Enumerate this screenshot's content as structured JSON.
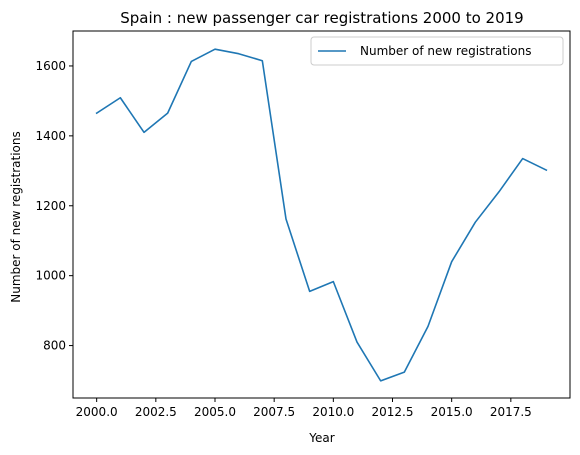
{
  "chart_data": {
    "type": "line",
    "title": "Spain : new passenger car registrations 2000 to 2019",
    "xlabel": "Year",
    "ylabel": "Number of new registrations",
    "xlim": [
      1999.0,
      2020.0
    ],
    "ylim": [
      650,
      1700
    ],
    "x_ticks": [
      2000.0,
      2002.5,
      2005.0,
      2007.5,
      2010.0,
      2012.5,
      2015.0,
      2017.5
    ],
    "x_tick_labels": [
      "2000.0",
      "2002.5",
      "2005.0",
      "2007.5",
      "2010.0",
      "2012.5",
      "2015.0",
      "2017.5"
    ],
    "y_ticks": [
      800,
      1000,
      1200,
      1400,
      1600
    ],
    "y_tick_labels": [
      "800",
      "1000",
      "1200",
      "1400",
      "1600"
    ],
    "grid": false,
    "legend_position": "top-right",
    "series": [
      {
        "name": "Number of new registrations",
        "color": "#1f77b4",
        "x": [
          2000,
          2001,
          2002,
          2003,
          2004,
          2005,
          2006,
          2007,
          2008,
          2009,
          2010,
          2011,
          2012,
          2013,
          2014,
          2015,
          2016,
          2017,
          2018,
          2019
        ],
        "y": [
          1465,
          1509,
          1410,
          1465,
          1613,
          1648,
          1635,
          1615,
          1162,
          955,
          983,
          810,
          699,
          724,
          855,
          1040,
          1153,
          1240,
          1335,
          1302
        ]
      }
    ]
  }
}
